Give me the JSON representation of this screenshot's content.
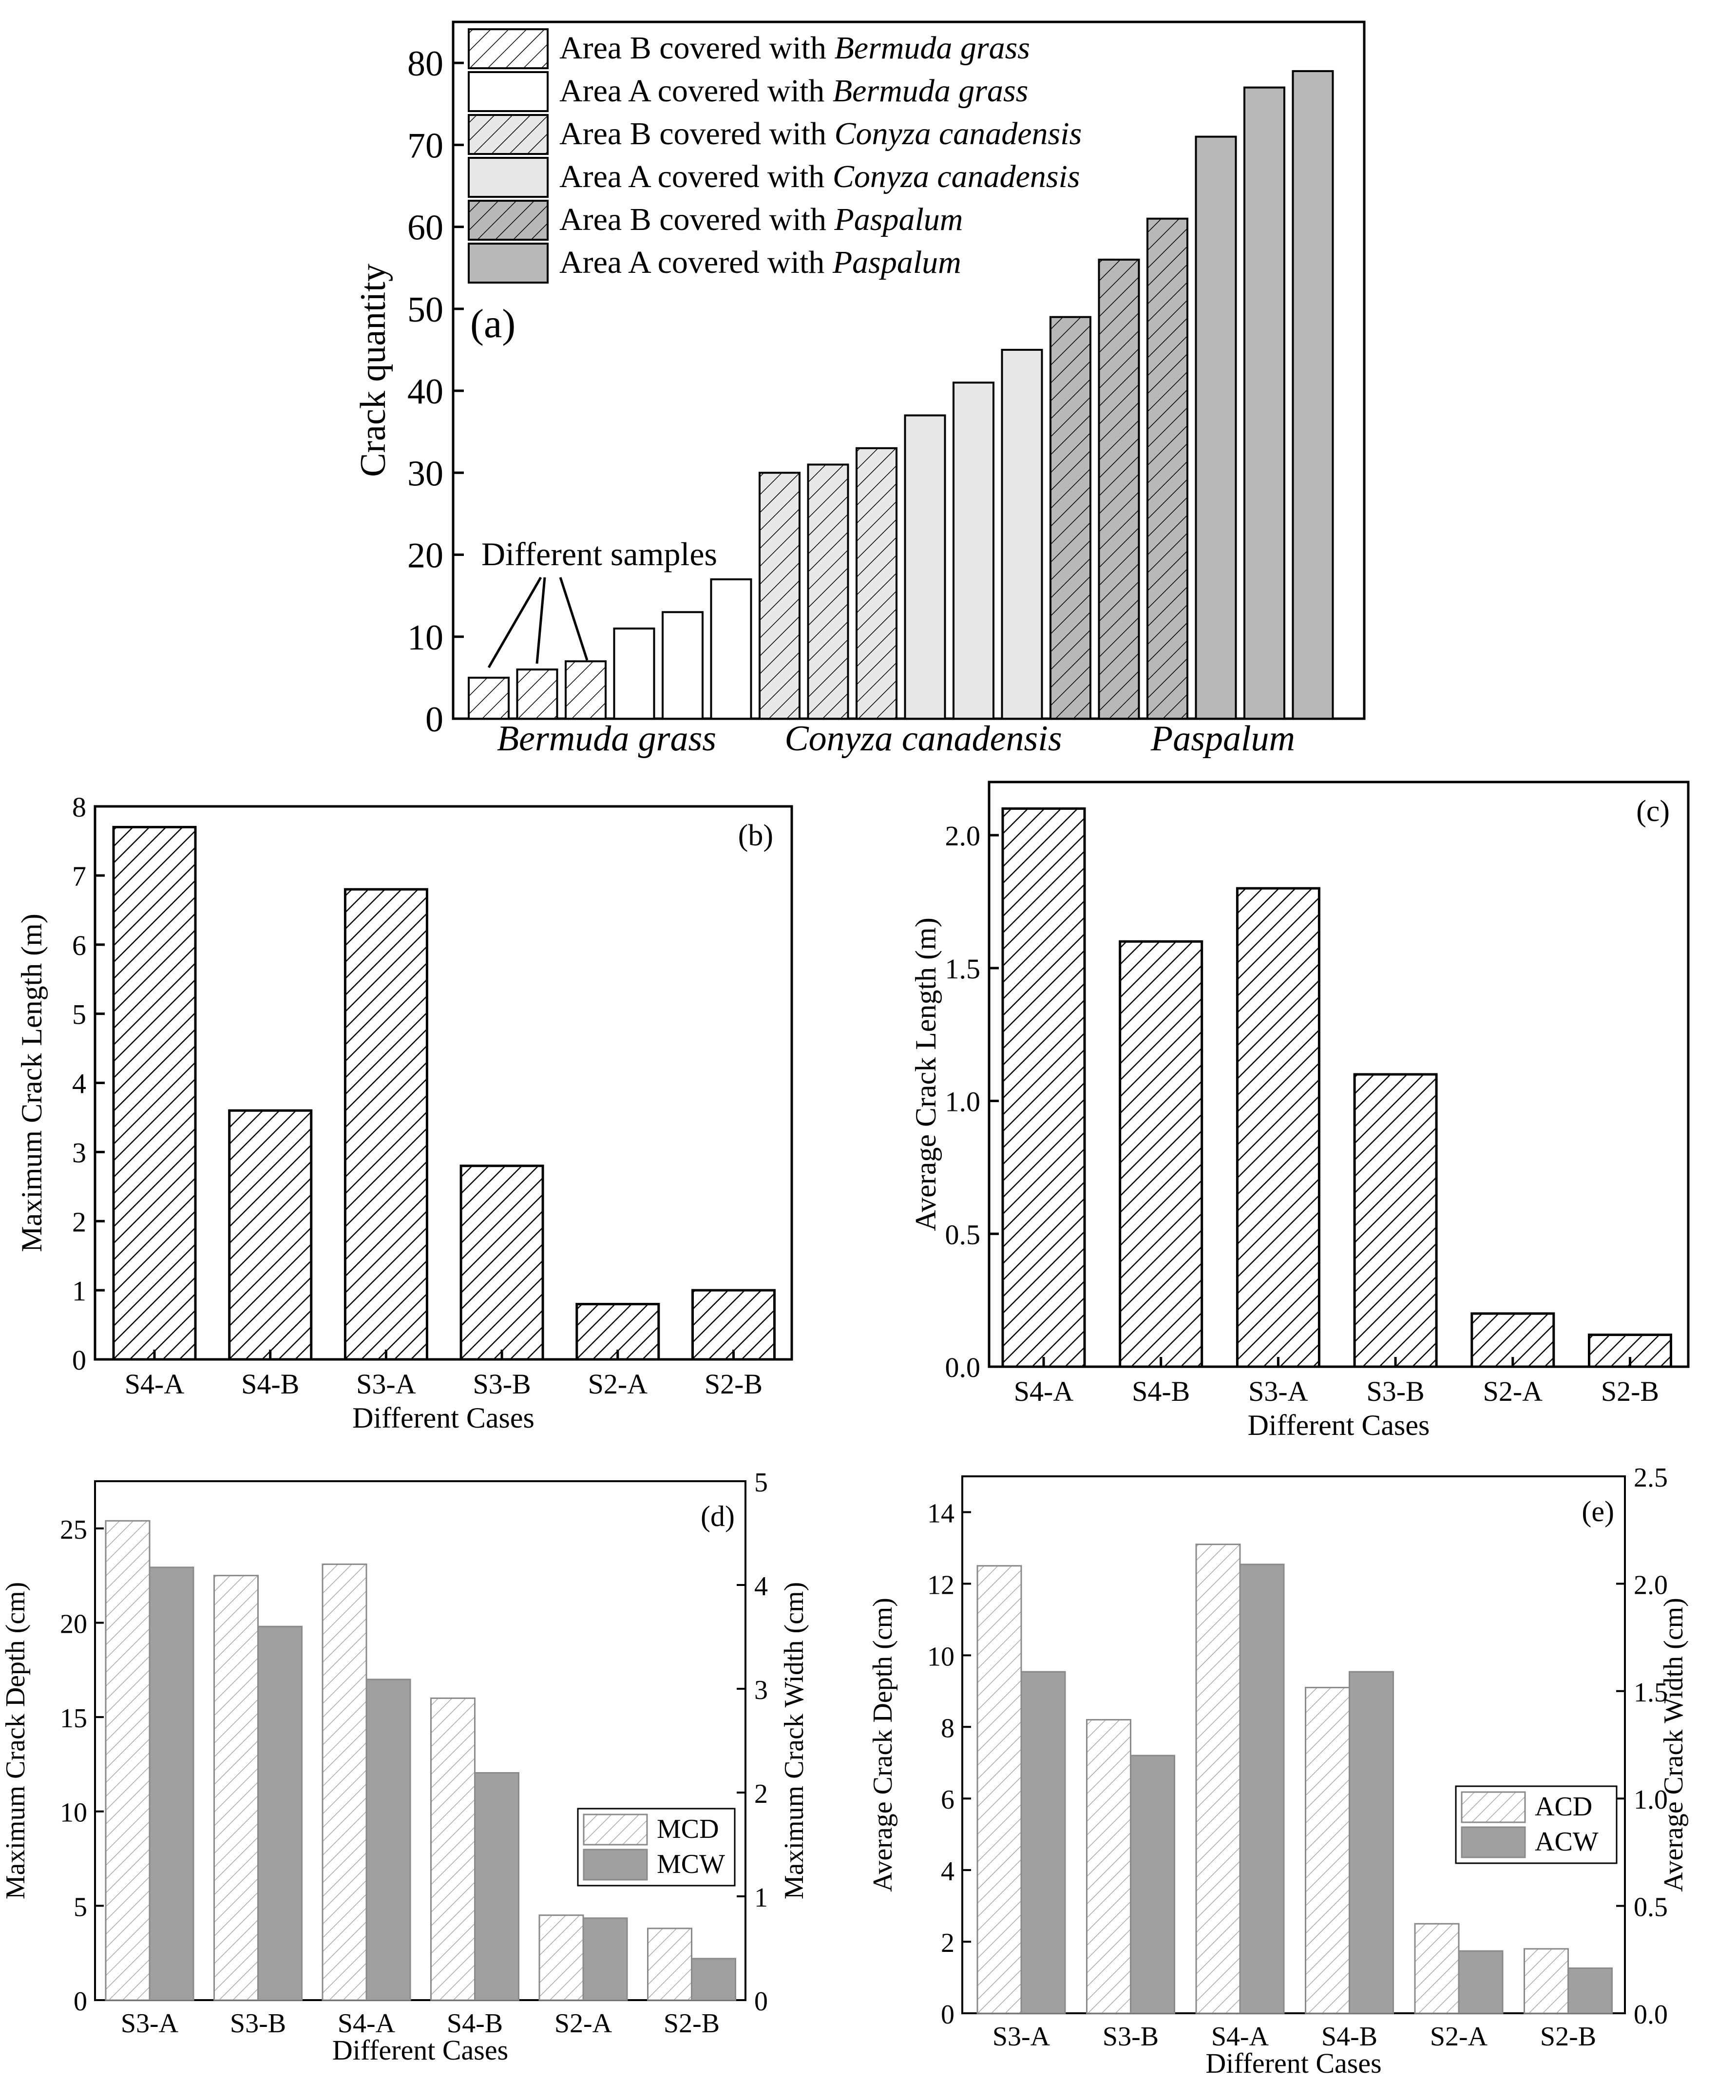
{
  "chart_data": [
    {
      "id": "a",
      "type": "bar",
      "panel_tag": "(a)",
      "ylabel": "Crack quantity",
      "ylim": [
        0,
        85
      ],
      "yticks": [
        0,
        10,
        20,
        30,
        40,
        50,
        60,
        70,
        80
      ],
      "groups": [
        "Bermuda grass",
        "Conyza canadensis",
        "Paspalum"
      ],
      "annotation": "Different samples",
      "series": [
        {
          "name_prefix": "Area B covered with ",
          "name_species": "Bermuda grass",
          "values": [
            5,
            6,
            7
          ]
        },
        {
          "name_prefix": "Area A covered with ",
          "name_species": "Bermuda grass",
          "values": [
            11,
            13,
            17
          ]
        },
        {
          "name_prefix": "Area B covered with ",
          "name_species": "Conyza canadensis",
          "values": [
            30,
            31,
            33
          ]
        },
        {
          "name_prefix": "Area A covered with ",
          "name_species": "Conyza canadensis",
          "values": [
            37,
            41,
            45
          ]
        },
        {
          "name_prefix": "Area B covered with ",
          "name_species": "Paspalum",
          "values": [
            49,
            56,
            61
          ]
        },
        {
          "name_prefix": "Area A covered with ",
          "name_species": "Paspalum",
          "values": [
            71,
            77,
            79
          ]
        }
      ],
      "colors": {
        "white": "#ffffff",
        "light": "#e8e8e8",
        "medium": "#c4c4c4",
        "dark": "#b8b8b8"
      }
    },
    {
      "id": "b",
      "type": "bar",
      "panel_tag": "(b)",
      "xlabel": "Different Cases",
      "ylabel": "Maximum Crack Length (m)",
      "categories": [
        "S4-A",
        "S4-B",
        "S3-A",
        "S3-B",
        "S2-A",
        "S2-B"
      ],
      "values": [
        7.7,
        3.6,
        6.8,
        2.8,
        0.8,
        1.0
      ],
      "ylim": [
        0,
        8
      ],
      "yticks": [
        "0",
        "1",
        "2",
        "3",
        "4",
        "5",
        "6",
        "7",
        "8"
      ]
    },
    {
      "id": "c",
      "type": "bar",
      "panel_tag": "(c)",
      "xlabel": "Different Cases",
      "ylabel": "Average Crack Length (m)",
      "categories": [
        "S4-A",
        "S4-B",
        "S3-A",
        "S3-B",
        "S2-A",
        "S2-B"
      ],
      "values": [
        2.1,
        1.6,
        1.8,
        1.1,
        0.2,
        0.12
      ],
      "ylim": [
        0,
        2.2
      ],
      "yticks": [
        "0.0",
        "0.5",
        "1.0",
        "1.5",
        "2.0"
      ]
    },
    {
      "id": "d",
      "type": "bar",
      "panel_tag": "(d)",
      "xlabel": "Different Cases",
      "ylabel": "Maximum Crack Depth (cm)",
      "ylabel_right": "Maximum Crack Width (cm)",
      "categories": [
        "S3-A",
        "S3-B",
        "S4-A",
        "S4-B",
        "S2-A",
        "S2-B"
      ],
      "ylim": [
        0,
        27.5
      ],
      "ylim_right": [
        0,
        5
      ],
      "yticks": [
        "0",
        "5",
        "10",
        "15",
        "20",
        "25"
      ],
      "yticks_right": [
        "0",
        "1",
        "2",
        "3",
        "4",
        "5"
      ],
      "series": [
        {
          "name": "MCD",
          "axis": "left",
          "values": [
            25.4,
            22.5,
            23.1,
            16.0,
            4.5,
            3.8
          ]
        },
        {
          "name": "MCW",
          "axis": "right",
          "values": [
            4.17,
            3.6,
            3.09,
            2.19,
            0.79,
            0.4
          ]
        }
      ]
    },
    {
      "id": "e",
      "type": "bar",
      "panel_tag": "(e)",
      "xlabel": "Different Cases",
      "ylabel": "Average Crack Depth (cm)",
      "ylabel_right": "Average Crack Width (cm)",
      "categories": [
        "S3-A",
        "S3-B",
        "S4-A",
        "S4-B",
        "S2-A",
        "S2-B"
      ],
      "ylim": [
        0,
        15
      ],
      "ylim_right": [
        0,
        2.5
      ],
      "yticks": [
        "0",
        "2",
        "4",
        "6",
        "8",
        "10",
        "12",
        "14"
      ],
      "yticks_right": [
        "0.0",
        "0.5",
        "1.0",
        "1.5",
        "2.0",
        "2.5"
      ],
      "series": [
        {
          "name": "ACD",
          "axis": "left",
          "values": [
            12.5,
            8.2,
            13.1,
            9.1,
            2.5,
            1.8
          ]
        },
        {
          "name": "ACW",
          "axis": "right",
          "values": [
            1.59,
            1.2,
            2.09,
            1.59,
            0.29,
            0.21
          ]
        }
      ]
    }
  ]
}
